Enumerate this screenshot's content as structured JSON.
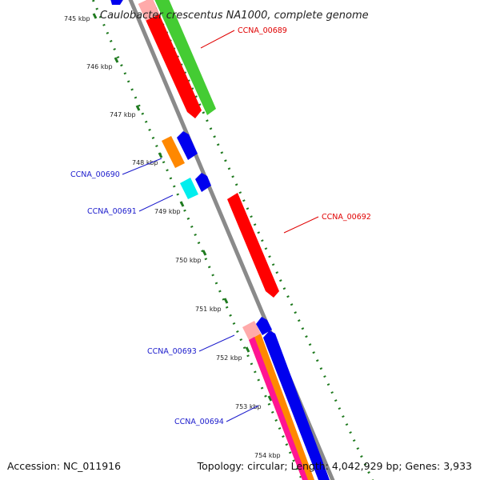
{
  "title": "Caulobacter crescentus NA1000, complete genome",
  "footer": {
    "accession": "Accession: NC_011916",
    "topology": "Topology: circular; Length: 4,042,929 bp; Genes: 3,933"
  },
  "kbp_labels": [
    "745 kbp",
    "746 kbp",
    "747 kbp",
    "748 kbp",
    "749 kbp",
    "750 kbp",
    "751 kbp",
    "752 kbp",
    "753 kbp",
    "754 kbp"
  ],
  "gene_labels": [
    {
      "text": "CCNA_00689",
      "color": "#e00000"
    },
    {
      "text": "CCNA_00690",
      "color": "#1a1acc"
    },
    {
      "text": "CCNA_00691",
      "color": "#1a1acc"
    },
    {
      "text": "CCNA_00692",
      "color": "#e00000"
    },
    {
      "text": "CCNA_00693",
      "color": "#1a1acc"
    },
    {
      "text": "CCNA_00694",
      "color": "#1a1acc"
    }
  ],
  "colors": {
    "backbone": "#8a8a8a",
    "tick": "#1f7a1f",
    "red": "#ff0000",
    "green": "#44cc33",
    "blue": "#0000ee",
    "orange": "#ff8800",
    "cyan": "#00eeee",
    "pink": "#ffaaaa",
    "magenta": "#ff1493"
  }
}
